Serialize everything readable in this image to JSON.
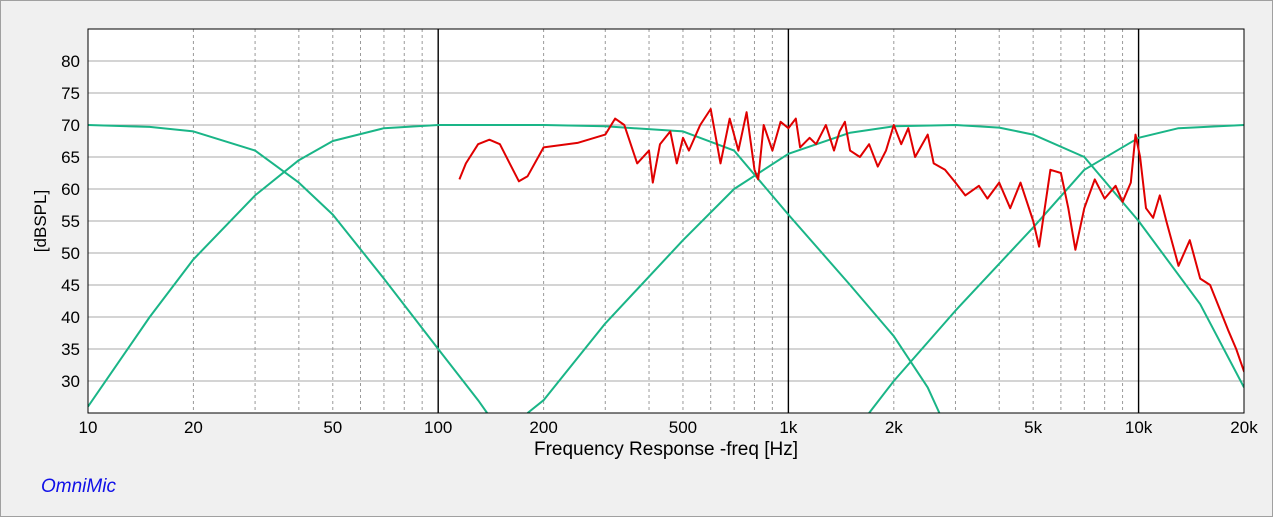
{
  "brand_label": "OmniMic",
  "chart_data": {
    "type": "line",
    "title": "",
    "xlabel": "Frequency Response -freq [Hz]",
    "ylabel": "[dBSPL]",
    "x_scale": "log",
    "xlim": [
      10,
      20000
    ],
    "ylim": [
      25,
      85
    ],
    "grid": true,
    "x_ticks": [
      {
        "value": 10,
        "label": "10"
      },
      {
        "value": 20,
        "label": "20"
      },
      {
        "value": 50,
        "label": "50"
      },
      {
        "value": 100,
        "label": "100"
      },
      {
        "value": 200,
        "label": "200"
      },
      {
        "value": 500,
        "label": "500"
      },
      {
        "value": 1000,
        "label": "1k"
      },
      {
        "value": 2000,
        "label": "2k"
      },
      {
        "value": 5000,
        "label": "5k"
      },
      {
        "value": 10000,
        "label": "10k"
      },
      {
        "value": 20000,
        "label": "20k"
      }
    ],
    "y_ticks": [
      30,
      35,
      40,
      45,
      50,
      55,
      60,
      65,
      70,
      75,
      80
    ],
    "colors": {
      "measured": "#e00000",
      "target": "#1ab587",
      "grid": "#999999",
      "major_grid": "#000000",
      "plot_bg": "#ffffff"
    },
    "series": [
      {
        "name": "",
        "color": "#1ab587",
        "points": [
          [
            10,
            70
          ],
          [
            15,
            69.7
          ],
          [
            20,
            69
          ],
          [
            30,
            66
          ],
          [
            40,
            61
          ],
          [
            50,
            56
          ],
          [
            70,
            46
          ],
          [
            100,
            35
          ],
          [
            130,
            27
          ],
          [
            140,
            24.5
          ]
        ]
      },
      {
        "name": "",
        "color": "#1ab587",
        "points": [
          [
            10,
            26
          ],
          [
            15,
            40
          ],
          [
            20,
            49
          ],
          [
            30,
            59
          ],
          [
            40,
            64.5
          ],
          [
            50,
            67.5
          ],
          [
            70,
            69.5
          ],
          [
            100,
            70
          ],
          [
            200,
            70
          ],
          [
            300,
            69.8
          ],
          [
            500,
            69
          ],
          [
            700,
            66
          ],
          [
            1000,
            56
          ],
          [
            1500,
            45
          ],
          [
            2000,
            37
          ],
          [
            2500,
            29
          ],
          [
            2700,
            25
          ]
        ]
      },
      {
        "name": "",
        "color": "#1ab587",
        "points": [
          [
            180,
            25
          ],
          [
            200,
            27
          ],
          [
            300,
            39
          ],
          [
            500,
            52
          ],
          [
            700,
            60
          ],
          [
            1000,
            65.5
          ],
          [
            1500,
            68.8
          ],
          [
            2000,
            69.8
          ],
          [
            3000,
            70
          ],
          [
            4000,
            69.6
          ],
          [
            5000,
            68.5
          ],
          [
            7000,
            65
          ],
          [
            10000,
            55
          ],
          [
            15000,
            42
          ],
          [
            20000,
            29
          ]
        ]
      },
      {
        "name": "",
        "color": "#1ab587",
        "points": [
          [
            1700,
            25
          ],
          [
            2000,
            30
          ],
          [
            3000,
            41
          ],
          [
            5000,
            54
          ],
          [
            7000,
            63
          ],
          [
            10000,
            68
          ],
          [
            13000,
            69.5
          ],
          [
            20000,
            70
          ]
        ]
      },
      {
        "name": "",
        "color": "#e00000",
        "points": [
          [
            115,
            61.5
          ],
          [
            120,
            64
          ],
          [
            130,
            67
          ],
          [
            140,
            67.7
          ],
          [
            150,
            67
          ],
          [
            160,
            64
          ],
          [
            170,
            61.2
          ],
          [
            180,
            62
          ],
          [
            200,
            66.5
          ],
          [
            250,
            67.2
          ],
          [
            300,
            68.5
          ],
          [
            320,
            71
          ],
          [
            340,
            70
          ],
          [
            370,
            64
          ],
          [
            400,
            66
          ],
          [
            410,
            61
          ],
          [
            430,
            67
          ],
          [
            460,
            69
          ],
          [
            480,
            64
          ],
          [
            500,
            68
          ],
          [
            520,
            66
          ],
          [
            560,
            70
          ],
          [
            600,
            72.5
          ],
          [
            640,
            64
          ],
          [
            680,
            71
          ],
          [
            720,
            66
          ],
          [
            760,
            72
          ],
          [
            800,
            63
          ],
          [
            820,
            61.5
          ],
          [
            850,
            70
          ],
          [
            900,
            66
          ],
          [
            950,
            70.5
          ],
          [
            1000,
            69.5
          ],
          [
            1050,
            71
          ],
          [
            1080,
            66.5
          ],
          [
            1150,
            68
          ],
          [
            1200,
            67
          ],
          [
            1280,
            70
          ],
          [
            1350,
            66
          ],
          [
            1400,
            69
          ],
          [
            1450,
            70.5
          ],
          [
            1500,
            66
          ],
          [
            1600,
            65
          ],
          [
            1700,
            67
          ],
          [
            1800,
            63.5
          ],
          [
            1900,
            66
          ],
          [
            2000,
            70
          ],
          [
            2100,
            67
          ],
          [
            2200,
            69.5
          ],
          [
            2300,
            65
          ],
          [
            2500,
            68.5
          ],
          [
            2600,
            64
          ],
          [
            2800,
            63
          ],
          [
            3000,
            61
          ],
          [
            3200,
            59
          ],
          [
            3500,
            60.5
          ],
          [
            3700,
            58.5
          ],
          [
            4000,
            61
          ],
          [
            4300,
            57
          ],
          [
            4600,
            61
          ],
          [
            5000,
            55
          ],
          [
            5200,
            51
          ],
          [
            5600,
            63
          ],
          [
            6000,
            62.5
          ],
          [
            6300,
            57
          ],
          [
            6600,
            50.5
          ],
          [
            7000,
            57
          ],
          [
            7500,
            61.5
          ],
          [
            8000,
            58.5
          ],
          [
            8600,
            60.5
          ],
          [
            9000,
            58
          ],
          [
            9500,
            61
          ],
          [
            9800,
            68.5
          ],
          [
            10100,
            65
          ],
          [
            10500,
            57
          ],
          [
            11000,
            55.5
          ],
          [
            11500,
            59
          ],
          [
            12000,
            55
          ],
          [
            13000,
            48
          ],
          [
            14000,
            52
          ],
          [
            15000,
            46
          ],
          [
            16000,
            45
          ],
          [
            18000,
            38
          ],
          [
            19000,
            35
          ],
          [
            20000,
            31.5
          ],
          [
            20500,
            32.5
          ],
          [
            21500,
            33.5
          ]
        ]
      }
    ]
  }
}
